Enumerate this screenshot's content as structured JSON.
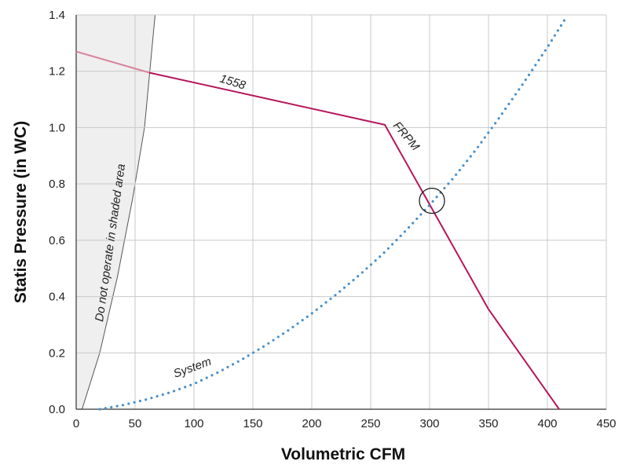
{
  "chart_data": {
    "type": "line",
    "xlabel": "Volumetric CFM",
    "ylabel": "Statis Pressure (in WC)",
    "xlim": [
      0,
      450
    ],
    "ylim": [
      0,
      1.4
    ],
    "xticks": [
      "0",
      "50",
      "100",
      "150",
      "200",
      "250",
      "300",
      "350",
      "400",
      "450"
    ],
    "yticks": [
      "0.0",
      "0.2",
      "0.4",
      "0.6",
      "0.8",
      "1.0",
      "1.2",
      "1.4"
    ],
    "grid": true,
    "colors": {
      "fan": "#b5175a",
      "system": "#4a90c8",
      "shade": "#efefef",
      "grid": "#c8c8c8"
    },
    "series": [
      {
        "name": "1558",
        "style": "solid",
        "points": [
          [
            0,
            1.27
          ],
          [
            62,
            1.195
          ],
          [
            262,
            1.01
          ],
          [
            350,
            0.355
          ],
          [
            410,
            0.0
          ]
        ]
      },
      {
        "name": "System",
        "style": "dotted",
        "points": [
          [
            20,
            0.0
          ],
          [
            40,
            0.015
          ],
          [
            60,
            0.035
          ],
          [
            80,
            0.06
          ],
          [
            100,
            0.09
          ],
          [
            120,
            0.13
          ],
          [
            140,
            0.175
          ],
          [
            160,
            0.225
          ],
          [
            180,
            0.28
          ],
          [
            200,
            0.34
          ],
          [
            220,
            0.405
          ],
          [
            240,
            0.475
          ],
          [
            260,
            0.55
          ],
          [
            280,
            0.635
          ],
          [
            300,
            0.725
          ],
          [
            320,
            0.82
          ],
          [
            340,
            0.925
          ],
          [
            360,
            1.04
          ],
          [
            380,
            1.16
          ],
          [
            400,
            1.285
          ],
          [
            415,
            1.385
          ]
        ]
      }
    ],
    "annotations": {
      "fan_label": "1558",
      "frpm_label": "FRPM",
      "system_label": "System",
      "shaded_label": "Do not operate in shaded area"
    },
    "operating_point": [
      302,
      0.74
    ],
    "shaded_region": [
      [
        0,
        0.0
      ],
      [
        5,
        0.0
      ],
      [
        20,
        0.2
      ],
      [
        35,
        0.47
      ],
      [
        48,
        0.75
      ],
      [
        58,
        1.0
      ],
      [
        67,
        1.4
      ],
      [
        0,
        1.4
      ]
    ]
  }
}
